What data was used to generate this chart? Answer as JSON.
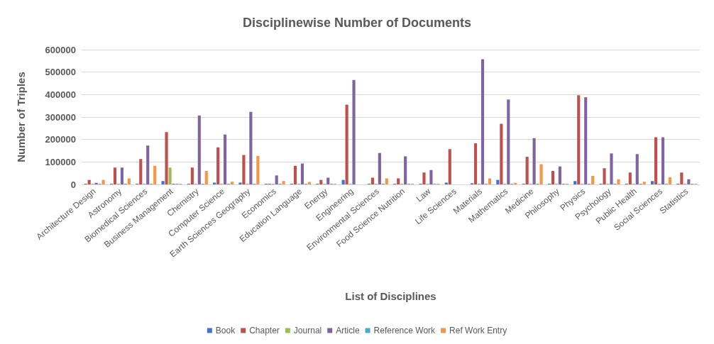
{
  "chart_data": {
    "type": "bar",
    "title": "Disciplinewise Number of Documents",
    "xlabel": "List of Disciplines",
    "ylabel": "Number of Triples",
    "categories": [
      "Architecture Design",
      "Astronomy",
      "Biomedical Sciences",
      "Business Management",
      "Chemistry",
      "Computer Science",
      "Earth Sciences Geography",
      "Economics",
      "Education Language",
      "Energy",
      "Engineering",
      "Environmental Sciences",
      "Food Science Nutrition",
      "Law",
      "Life Sciences",
      "Materials",
      "Mathematics",
      "Medicine",
      "Philosophy",
      "Physics",
      "Psychology",
      "Public Health",
      "Social Sciences",
      "Statistics"
    ],
    "series": [
      {
        "name": "Book",
        "color": "#4472c4",
        "values": [
          3000,
          3000,
          3000,
          15000,
          3000,
          8000,
          8000,
          3000,
          3000,
          3000,
          20000,
          3000,
          3000,
          3000,
          8000,
          5000,
          20000,
          3000,
          3000,
          15000,
          3000,
          3000,
          15000,
          3000
        ]
      },
      {
        "name": "Chapter",
        "color": "#c0504d",
        "values": [
          20000,
          75000,
          113000,
          233000,
          75000,
          165000,
          131000,
          3000,
          83000,
          20000,
          355000,
          30000,
          27000,
          53000,
          157000,
          183000,
          270000,
          123000,
          60000,
          397000,
          72000,
          53000,
          210000,
          53000
        ]
      },
      {
        "name": "Journal",
        "color": "#9bbb59",
        "values": [
          3000,
          3000,
          3000,
          75000,
          3000,
          3000,
          3000,
          3000,
          3000,
          3000,
          3000,
          3000,
          3000,
          3000,
          0,
          3000,
          3000,
          3000,
          3000,
          3000,
          3000,
          3000,
          3000,
          3000
        ]
      },
      {
        "name": "Article",
        "color": "#8064a2",
        "values": [
          7000,
          75000,
          173000,
          3000,
          307000,
          222000,
          323000,
          40000,
          93000,
          30000,
          465000,
          140000,
          125000,
          64000,
          0,
          557000,
          378000,
          206000,
          80000,
          388000,
          138000,
          135000,
          210000,
          23000
        ]
      },
      {
        "name": "Reference Work",
        "color": "#4bacc6",
        "values": [
          3000,
          3000,
          3000,
          3000,
          3000,
          3000,
          3000,
          3000,
          3000,
          3000,
          0,
          3000,
          3000,
          3000,
          0,
          3000,
          3000,
          3000,
          3000,
          3000,
          3000,
          3000,
          3000,
          3000
        ]
      },
      {
        "name": "Ref Work Entry",
        "color": "#f79646",
        "values": [
          20000,
          27000,
          83000,
          3000,
          60000,
          12000,
          127000,
          15000,
          11000,
          3000,
          0,
          27000,
          3000,
          3000,
          0,
          27000,
          7000,
          90000,
          3000,
          38000,
          23000,
          12000,
          32000,
          3000
        ]
      }
    ],
    "ylim": [
      0,
      600000
    ],
    "yticks": [
      0,
      100000,
      200000,
      300000,
      400000,
      500000,
      600000
    ],
    "grid": "y",
    "legend": "bottom"
  }
}
